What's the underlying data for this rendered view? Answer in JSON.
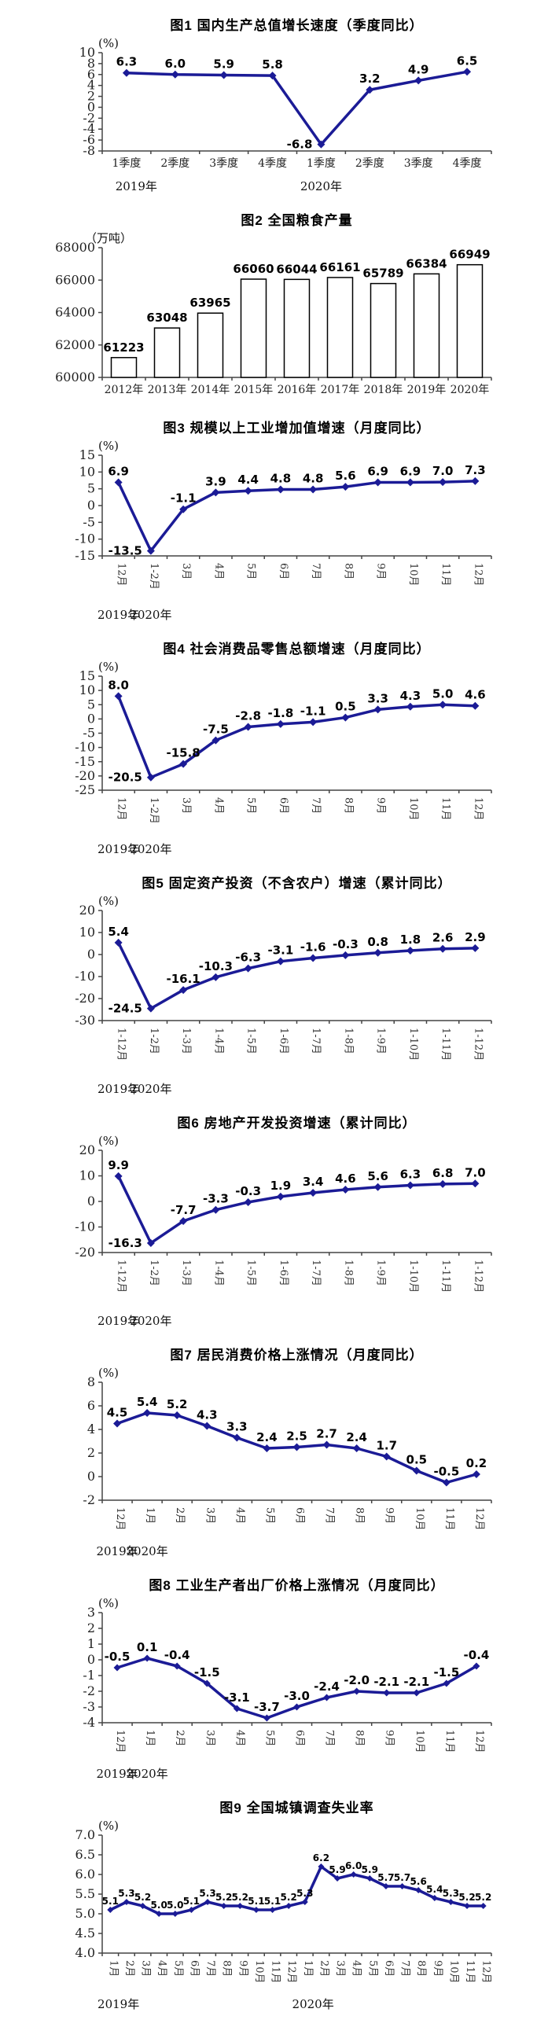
{
  "page": {
    "background": "#ffffff",
    "accent_line_color": "#1b1b96"
  },
  "chart_data": [
    {
      "type": "line",
      "title": "图1  国内生产总值增长速度（季度同比）",
      "unit": "(%)",
      "categories": [
        "1季度",
        "2季度",
        "3季度",
        "4季度",
        "1季度",
        "2季度",
        "3季度",
        "4季度"
      ],
      "values": [
        6.3,
        6.0,
        5.9,
        5.8,
        -6.8,
        3.2,
        4.9,
        6.5
      ],
      "value_decimals": 1,
      "ylim": [
        -8,
        10
      ],
      "ytick_step": 2,
      "ytick_decimals": 0,
      "grid": false,
      "legend": "none",
      "years": [
        {
          "label": "2019年",
          "at": 0.2
        },
        {
          "label": "2020年",
          "at": 4
        }
      ]
    },
    {
      "type": "bar",
      "title": "图2  全国粮食产量",
      "unit": "（万吨）",
      "categories": [
        "2012年",
        "2013年",
        "2014年",
        "2015年",
        "2016年",
        "2017年",
        "2018年",
        "2019年",
        "2020年"
      ],
      "values": [
        61223,
        63048,
        63965,
        66060,
        66044,
        66161,
        65789,
        66384,
        66949
      ],
      "value_decimals": 0,
      "ylim": [
        60000,
        68000
      ],
      "ytick_step": 2000,
      "ytick_decimals": 0,
      "grid": false,
      "legend": "none",
      "years": []
    },
    {
      "type": "line",
      "title": "图3  规模以上工业增加值增速（月度同比）",
      "unit": "(%)",
      "categories": [
        "12月",
        "1-2月",
        "3月",
        "4月",
        "5月",
        "6月",
        "7月",
        "8月",
        "9月",
        "10月",
        "11月",
        "12月"
      ],
      "values": [
        6.9,
        -13.5,
        -1.1,
        3.9,
        4.4,
        4.8,
        4.8,
        5.6,
        6.9,
        6.9,
        7.0,
        7.3
      ],
      "value_decimals": 1,
      "ylim": [
        -15,
        15
      ],
      "ytick_step": 5,
      "ytick_decimals": 0,
      "grid": false,
      "legend": "none",
      "years": [
        {
          "label": "2019年",
          "at": 0
        },
        {
          "label": "2020年",
          "at": 1
        }
      ]
    },
    {
      "type": "line",
      "title": "图4  社会消费品零售总额增速（月度同比）",
      "unit": "(%)",
      "categories": [
        "12月",
        "1-2月",
        "3月",
        "4月",
        "5月",
        "6月",
        "7月",
        "8月",
        "9月",
        "10月",
        "11月",
        "12月"
      ],
      "values": [
        8.0,
        -20.5,
        -15.8,
        -7.5,
        -2.8,
        -1.8,
        -1.1,
        0.5,
        3.3,
        4.3,
        5.0,
        4.6
      ],
      "value_decimals": 1,
      "ylim": [
        -25,
        15
      ],
      "ytick_step": 5,
      "ytick_decimals": 0,
      "grid": false,
      "legend": "none",
      "years": [
        {
          "label": "2019年",
          "at": 0
        },
        {
          "label": "2020年",
          "at": 1
        }
      ]
    },
    {
      "type": "line",
      "title": "图5  固定资产投资（不含农户）增速（累计同比）",
      "unit": "(%)",
      "categories": [
        "1-12月",
        "1-2月",
        "1-3月",
        "1-4月",
        "1-5月",
        "1-6月",
        "1-7月",
        "1-8月",
        "1-9月",
        "1-10月",
        "1-11月",
        "1-12月"
      ],
      "values": [
        5.4,
        -24.5,
        -16.1,
        -10.3,
        -6.3,
        -3.1,
        -1.6,
        -0.3,
        0.8,
        1.8,
        2.6,
        2.9
      ],
      "value_decimals": 1,
      "ylim": [
        -30,
        20
      ],
      "ytick_step": 10,
      "ytick_decimals": 0,
      "grid": false,
      "legend": "none",
      "years": [
        {
          "label": "2019年",
          "at": 0
        },
        {
          "label": "2020年",
          "at": 1
        }
      ]
    },
    {
      "type": "line",
      "title": "图6  房地产开发投资增速（累计同比）",
      "unit": "(%)",
      "categories": [
        "1-12月",
        "1-2月",
        "1-3月",
        "1-4月",
        "1-5月",
        "1-6月",
        "1-7月",
        "1-8月",
        "1-9月",
        "1-10月",
        "1-11月",
        "1-12月"
      ],
      "values": [
        9.9,
        -16.3,
        -7.7,
        -3.3,
        -0.3,
        1.9,
        3.4,
        4.6,
        5.6,
        6.3,
        6.8,
        7.0
      ],
      "value_decimals": 1,
      "ylim": [
        -20,
        20
      ],
      "ytick_step": 10,
      "ytick_decimals": 0,
      "grid": false,
      "legend": "none",
      "years": [
        {
          "label": "2019年",
          "at": 0
        },
        {
          "label": "2020年",
          "at": 1
        }
      ]
    },
    {
      "type": "line",
      "title": "图7  居民消费价格上涨情况（月度同比）",
      "unit": "(%)",
      "categories": [
        "12月",
        "1月",
        "2月",
        "3月",
        "4月",
        "5月",
        "6月",
        "7月",
        "8月",
        "9月",
        "10月",
        "11月",
        "12月"
      ],
      "values": [
        4.5,
        5.4,
        5.2,
        4.3,
        3.3,
        2.4,
        2.5,
        2.7,
        2.4,
        1.7,
        0.5,
        -0.5,
        0.2
      ],
      "value_decimals": 1,
      "ylim": [
        -2,
        8
      ],
      "ytick_step": 2,
      "ytick_decimals": 0,
      "grid": false,
      "legend": "none",
      "years": [
        {
          "label": "2019年",
          "at": 0
        },
        {
          "label": "2020年",
          "at": 1
        }
      ]
    },
    {
      "type": "line",
      "title": "图8  工业生产者出厂价格上涨情况（月度同比）",
      "unit": "(%)",
      "categories": [
        "12月",
        "1月",
        "2月",
        "3月",
        "4月",
        "5月",
        "6月",
        "7月",
        "8月",
        "9月",
        "10月",
        "11月",
        "12月"
      ],
      "values": [
        -0.5,
        0.1,
        -0.4,
        -1.5,
        -3.1,
        -3.7,
        -3.0,
        -2.4,
        -2.0,
        -2.1,
        -2.1,
        -1.5,
        -0.4
      ],
      "value_decimals": 1,
      "ylim": [
        -4,
        3
      ],
      "ytick_step": 1,
      "ytick_decimals": 0,
      "grid": false,
      "legend": "none",
      "years": [
        {
          "label": "2019年",
          "at": 0
        },
        {
          "label": "2020年",
          "at": 1
        }
      ]
    },
    {
      "type": "line",
      "title": "图9  全国城镇调查失业率",
      "unit": "(%)",
      "categories": [
        "1月",
        "2月",
        "3月",
        "4月",
        "5月",
        "6月",
        "7月",
        "8月",
        "9月",
        "10月",
        "11月",
        "12月",
        "1月",
        "2月",
        "3月",
        "4月",
        "5月",
        "6月",
        "7月",
        "8月",
        "9月",
        "10月",
        "11月",
        "12月"
      ],
      "values": [
        5.1,
        5.3,
        5.2,
        5.0,
        5.0,
        5.1,
        5.3,
        5.2,
        5.2,
        5.1,
        5.1,
        5.2,
        5.3,
        6.2,
        5.9,
        6.0,
        5.9,
        5.7,
        5.7,
        5.6,
        5.4,
        5.3,
        5.2,
        5.2
      ],
      "value_decimals": 1,
      "ylim": [
        4.0,
        7.0
      ],
      "ytick_step": 0.5,
      "ytick_decimals": 1,
      "grid": false,
      "legend": "none",
      "years": [
        {
          "label": "2019年",
          "at": 0.5
        },
        {
          "label": "2020年",
          "at": 12.5
        }
      ]
    }
  ]
}
